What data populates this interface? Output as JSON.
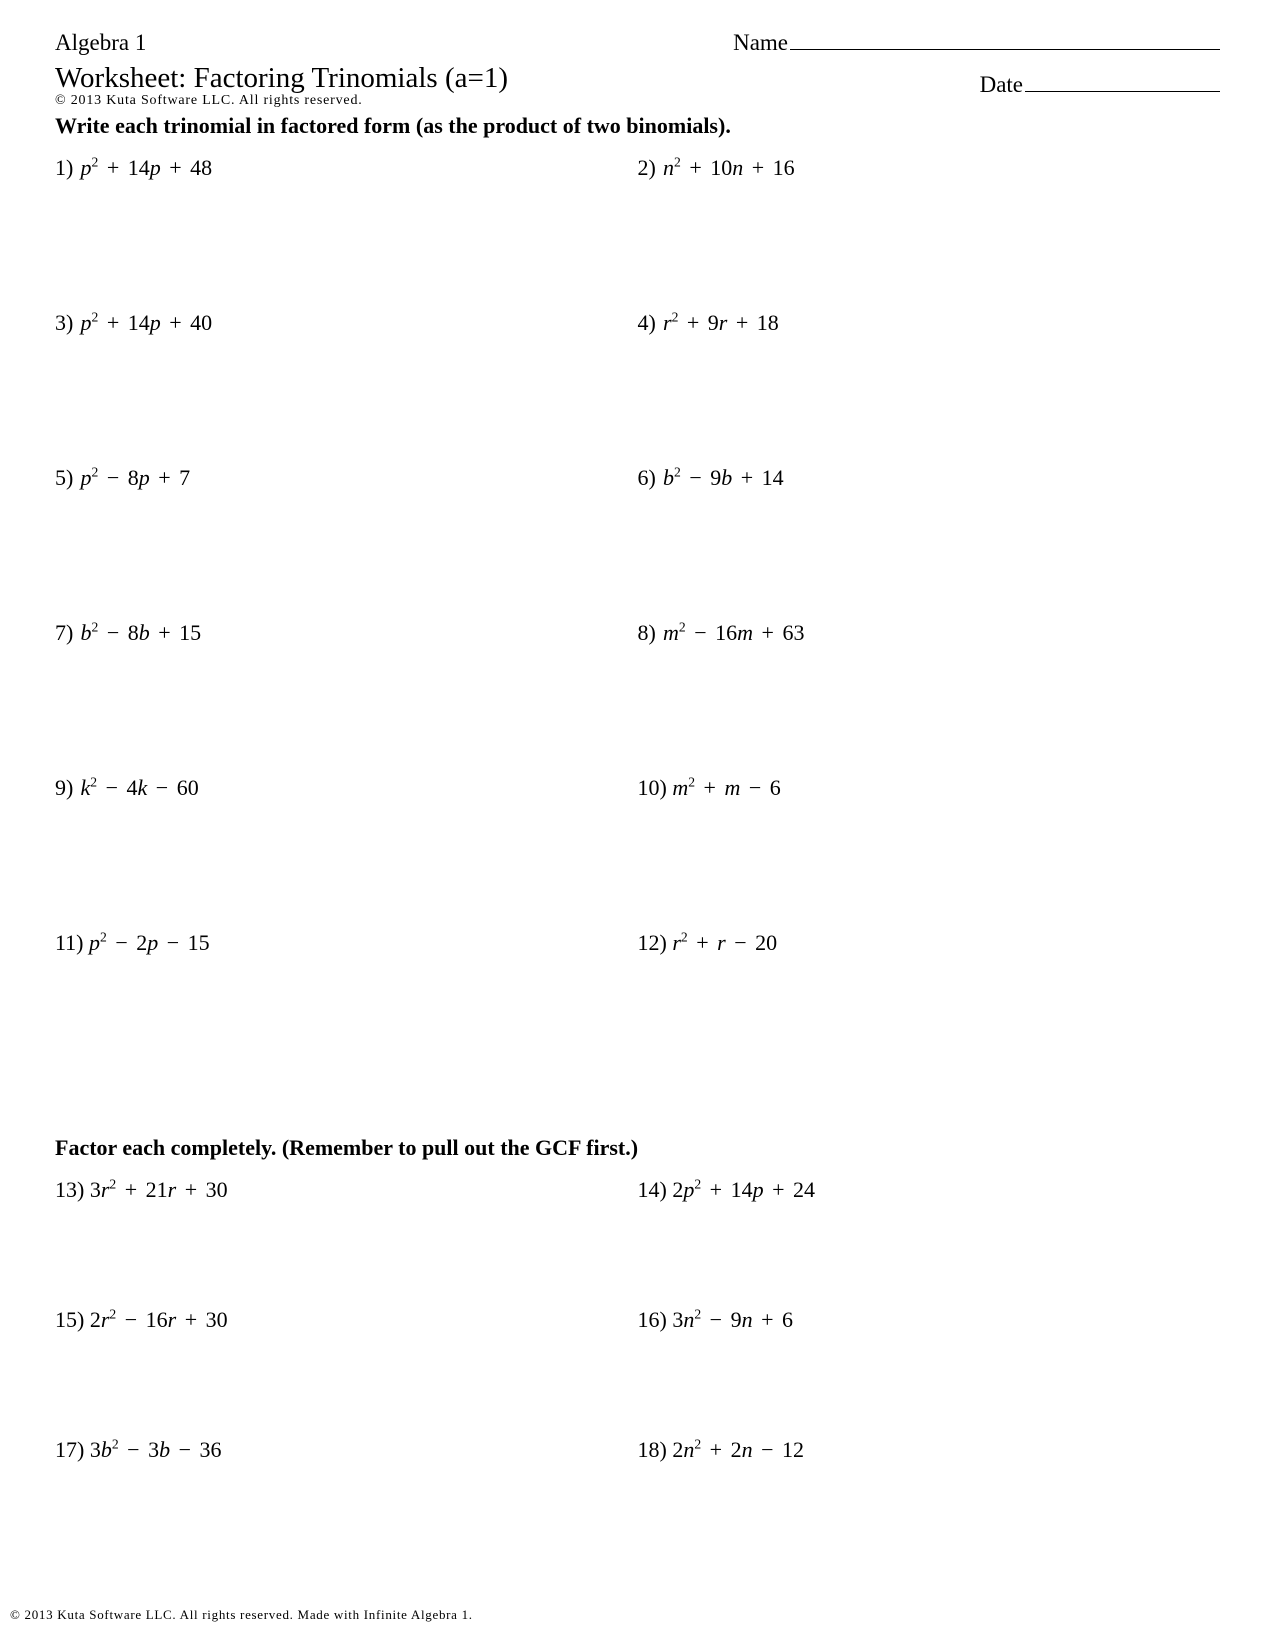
{
  "header": {
    "course": "Algebra 1",
    "name_label": "Name",
    "title": "Worksheet: Factoring Trinomials (a=1)",
    "copyright": "© 2013 Kuta Software LLC. All rights reserved.",
    "date_label": "Date"
  },
  "section1": {
    "instruction": "Write each trinomial in factored form (as the product of two binomials).",
    "problems": [
      {
        "n": "1)",
        "c": "",
        "v": "p",
        "b": "+ 14",
        "bc": "",
        "bv": "p",
        "d": "+ 48"
      },
      {
        "n": "2)",
        "c": "",
        "v": "n",
        "b": "+ 10",
        "bc": "",
        "bv": "n",
        "d": "+ 16"
      },
      {
        "n": "3)",
        "c": "",
        "v": "p",
        "b": "+ 14",
        "bc": "",
        "bv": "p",
        "d": "+ 40"
      },
      {
        "n": "4)",
        "c": "",
        "v": "r",
        "b": "+ 9",
        "bc": "",
        "bv": "r",
        "d": "+ 18"
      },
      {
        "n": "5)",
        "c": "",
        "v": "p",
        "b": "− 8",
        "bc": "",
        "bv": "p",
        "d": "+ 7"
      },
      {
        "n": "6)",
        "c": "",
        "v": "b",
        "b": "− 9",
        "bc": "",
        "bv": "b",
        "d": "+ 14"
      },
      {
        "n": "7)",
        "c": "",
        "v": "b",
        "b": "− 8",
        "bc": "",
        "bv": "b",
        "d": "+ 15"
      },
      {
        "n": "8)",
        "c": "",
        "v": "m",
        "b": "− 16",
        "bc": "",
        "bv": "m",
        "d": "+ 63"
      },
      {
        "n": "9)",
        "c": "",
        "v": "k",
        "b": "− 4",
        "bc": "",
        "bv": "k",
        "d": "− 60"
      },
      {
        "n": "10)",
        "c": "",
        "v": "m",
        "b": "+ ",
        "bc": "",
        "bv": "m",
        "d": "− 6"
      },
      {
        "n": "11)",
        "c": "",
        "v": "p",
        "b": "− 2",
        "bc": "",
        "bv": "p",
        "d": "− 15"
      },
      {
        "n": "12)",
        "c": "",
        "v": "r",
        "b": "+ ",
        "bc": "",
        "bv": "r",
        "d": "− 20"
      }
    ]
  },
  "section2": {
    "instruction": "Factor each completely. (Remember to pull out the GCF first.)",
    "problems": [
      {
        "n": "13)",
        "c": "3",
        "v": "r",
        "b": "+ 21",
        "bc": "",
        "bv": "r",
        "d": "+ 30"
      },
      {
        "n": "14)",
        "c": "2",
        "v": "p",
        "b": "+ 14",
        "bc": "",
        "bv": "p",
        "d": "+ 24"
      },
      {
        "n": "15)",
        "c": "2",
        "v": "r",
        "b": "− 16",
        "bc": "",
        "bv": "r",
        "d": "+ 30"
      },
      {
        "n": "16)",
        "c": "3",
        "v": "n",
        "b": "− 9",
        "bc": "",
        "bv": "n",
        "d": "+ 6"
      },
      {
        "n": "17)",
        "c": "3",
        "v": "b",
        "b": "− 3",
        "bc": "",
        "bv": "b",
        "d": "− 36"
      },
      {
        "n": "18)",
        "c": "2",
        "v": "n",
        "b": "+ 2",
        "bc": "",
        "bv": "n",
        "d": "− 12"
      }
    ]
  },
  "footer": "© 2013 Kuta Software LLC. All rights reserved. Made with Infinite Algebra 1."
}
